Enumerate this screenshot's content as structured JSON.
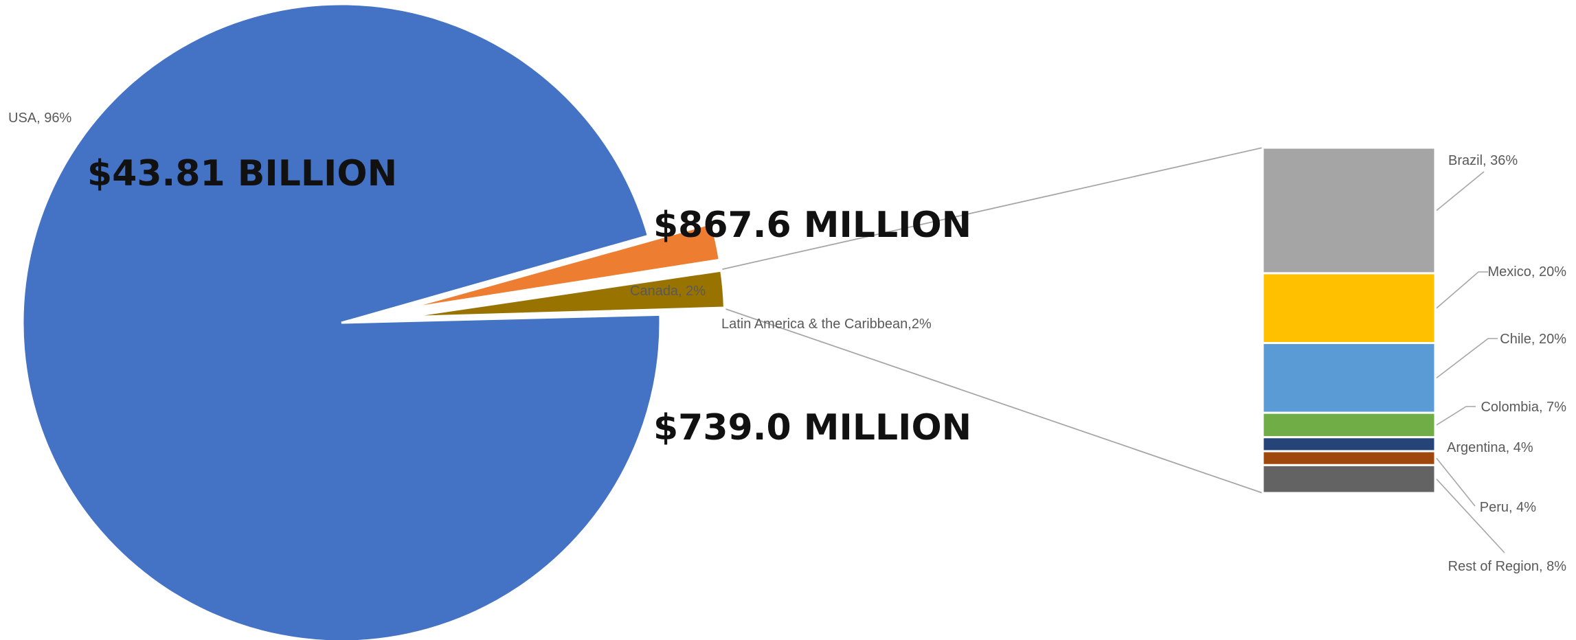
{
  "chart_data": {
    "type": "pie",
    "subtype": "bar-of-pie",
    "slices": [
      {
        "name": "USA",
        "label": "USA, 96%",
        "percent": 96,
        "color": "#4472C4",
        "amount_label": "$43.81 BILLION"
      },
      {
        "name": "Canada",
        "label": "Canada, 2%",
        "percent": 2,
        "color": "#ED7D31",
        "amount_label": "$867.6 MILLION"
      },
      {
        "name": "Latin America & the Caribbean",
        "label": "Latin America & the Caribbean,2%",
        "percent": 2,
        "color": "#997300",
        "amount_label": "$739.0 MILLION"
      }
    ],
    "breakdown_of": "Latin America & the Caribbean",
    "breakdown": [
      {
        "name": "Brazil",
        "label": "Brazil, 36%",
        "percent": 36,
        "color": "#A5A5A5"
      },
      {
        "name": "Mexico",
        "label": "Mexico, 20%",
        "percent": 20,
        "color": "#FFC000"
      },
      {
        "name": "Chile",
        "label": "Chile, 20%",
        "percent": 20,
        "color": "#5B9BD5"
      },
      {
        "name": "Colombia",
        "label": "Colombia, 7%",
        "percent": 7,
        "color": "#70AD47"
      },
      {
        "name": "Argentina",
        "label": "Argentina, 4%",
        "percent": 4,
        "color": "#264478"
      },
      {
        "name": "Peru",
        "label": "Peru, 4%",
        "percent": 4,
        "color": "#9E480E"
      },
      {
        "name": "Rest of Region",
        "label": "Rest of Region, 8%",
        "percent": 8,
        "color": "#636363"
      }
    ]
  }
}
